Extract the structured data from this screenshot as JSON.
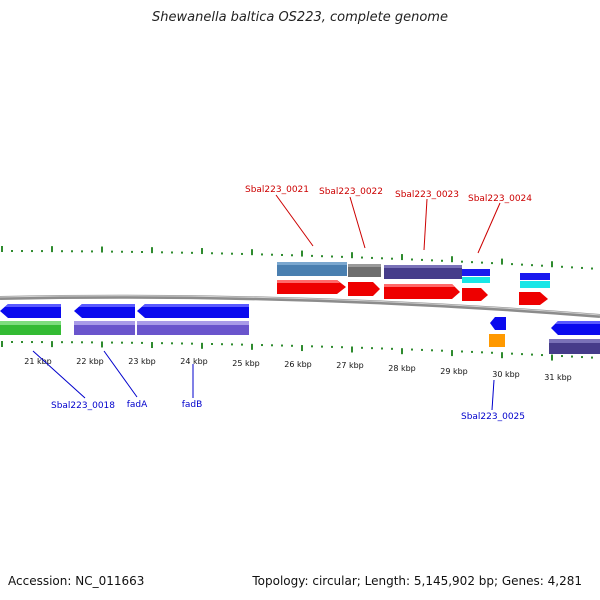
{
  "title": "Shewanella baltica OS223, complete genome",
  "footer": {
    "accession": "Accession: NC_011663",
    "summary": "Topology: circular; Length: 5,145,902 bp; Genes: 4,281"
  },
  "colors": {
    "top_label": "#cc0000",
    "bottom_label": "#0000cc",
    "tick": "#2e8b2e",
    "axis": "#888888"
  },
  "kbp_labels": [
    "21 kbp",
    "22 kbp",
    "23 kbp",
    "24 kbp",
    "25 kbp",
    "26 kbp",
    "27 kbp",
    "28 kbp",
    "29 kbp",
    "30 kbp",
    "31 kbp"
  ],
  "top_gene_labels": [
    "Sbal223_0021",
    "Sbal223_0022",
    "Sbal223_0023",
    "Sbal223_0024"
  ],
  "bottom_gene_labels": [
    "Sbal223_0018",
    "fadA",
    "fadB",
    "Sbal223_0025"
  ]
}
